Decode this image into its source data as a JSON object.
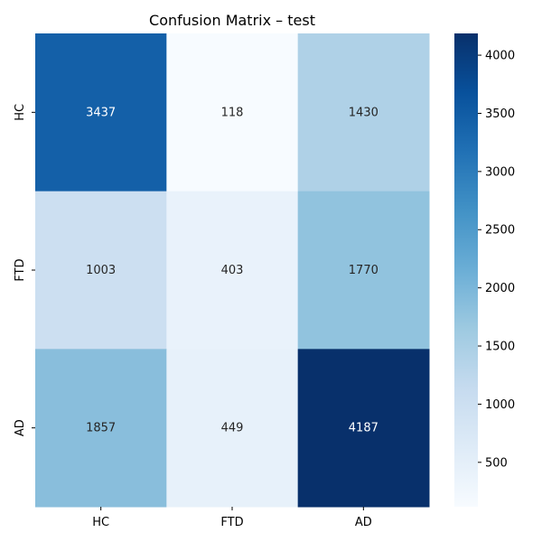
{
  "chart_data": {
    "type": "heatmap",
    "title": "Confusion Matrix – test",
    "xlabel": "",
    "ylabel": "",
    "x_categories": [
      "HC",
      "FTD",
      "AD"
    ],
    "y_categories": [
      "HC",
      "FTD",
      "AD"
    ],
    "values": [
      [
        3437,
        118,
        1430
      ],
      [
        1003,
        403,
        1770
      ],
      [
        1857,
        449,
        4187
      ]
    ],
    "colormap": "Blues",
    "color_range": [
      118,
      4187
    ],
    "colorbar_ticks": [
      500,
      1000,
      1500,
      2000,
      2500,
      3000,
      3500,
      4000
    ],
    "colorbar_tick_labels": [
      "500",
      "1000",
      "1500",
      "2000",
      "2500",
      "3000",
      "3500",
      "4000"
    ],
    "text_color_light": "#ffffff",
    "text_color_dark": "#262626"
  }
}
